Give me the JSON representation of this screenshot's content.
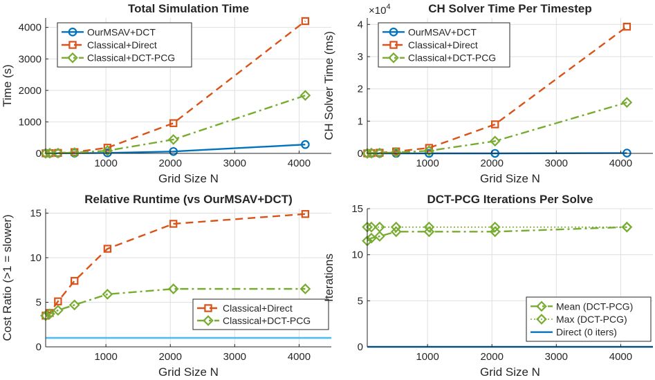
{
  "colors": {
    "blue": "#0072BD",
    "orange": "#D95319",
    "green": "#77AC30",
    "lightblue": "#4DBEEE",
    "axis": "#262626",
    "grid": "#dfdfdf"
  },
  "chart_data": [
    {
      "type": "line",
      "title": "Total Simulation Time",
      "xlabel": "Grid Size N",
      "ylabel": "Time (s)",
      "xlim": [
        64,
        4500
      ],
      "ylim": [
        0,
        4300
      ],
      "xticks": [
        1000,
        2000,
        3000,
        4000
      ],
      "yticks": [
        0,
        1000,
        2000,
        3000,
        4000
      ],
      "exponent_label": "",
      "legend_position": "top-left",
      "series": [
        {
          "name": "OurMSAV+DCT",
          "x": [
            64,
            128,
            256,
            512,
            1024,
            2048,
            4096
          ],
          "values": [
            1,
            2,
            4,
            6,
            15,
            60,
            280
          ],
          "color": "#0072BD",
          "marker": "o",
          "dash": ""
        },
        {
          "name": "Classical+Direct",
          "x": [
            64,
            128,
            256,
            512,
            1024,
            2048,
            4096
          ],
          "values": [
            3,
            8,
            15,
            40,
            180,
            960,
            4200
          ],
          "color": "#D95319",
          "marker": "s",
          "dash": "11,7"
        },
        {
          "name": "Classical+DCT-PCG",
          "x": [
            64,
            128,
            256,
            512,
            1024,
            2048,
            4096
          ],
          "values": [
            3,
            6,
            10,
            25,
            85,
            440,
            1840
          ],
          "color": "#77AC30",
          "marker": "d",
          "dash": "12,5,3,5"
        }
      ]
    },
    {
      "type": "line",
      "title": "CH Solver Time Per Timestep",
      "xlabel": "Grid Size N",
      "ylabel": "CH Solver Time (ms)",
      "xlim": [
        64,
        4500
      ],
      "ylim": [
        0,
        4.2
      ],
      "xticks": [
        1000,
        2000,
        3000,
        4000
      ],
      "yticks": [
        0,
        1,
        2,
        3,
        4
      ],
      "exponent_label": "×10",
      "exponent_power": "4",
      "legend_position": "top-left",
      "series": [
        {
          "name": "OurMSAV+DCT",
          "x": [
            64,
            128,
            256,
            512,
            1024,
            2048,
            4096
          ],
          "values": [
            0.0,
            0.0,
            0.0,
            0.0,
            0.0,
            0.0,
            0.01
          ],
          "color": "#0072BD",
          "marker": "o",
          "dash": ""
        },
        {
          "name": "Classical+Direct",
          "x": [
            64,
            128,
            256,
            512,
            1024,
            2048,
            4096
          ],
          "values": [
            0.0,
            0.01,
            0.02,
            0.06,
            0.17,
            0.9,
            3.93
          ],
          "color": "#D95319",
          "marker": "s",
          "dash": "11,7"
        },
        {
          "name": "Classical+DCT-PCG",
          "x": [
            64,
            128,
            256,
            512,
            1024,
            2048,
            4096
          ],
          "values": [
            0.0,
            0.01,
            0.01,
            0.03,
            0.08,
            0.38,
            1.58
          ],
          "color": "#77AC30",
          "marker": "d",
          "dash": "12,5,3,5"
        }
      ]
    },
    {
      "type": "line",
      "title": "Relative Runtime (vs OurMSAV+DCT)",
      "xlabel": "Grid Size N",
      "ylabel": "Cost Ratio (>1 = slower)",
      "xlim": [
        64,
        4500
      ],
      "ylim": [
        0,
        15.5
      ],
      "xticks": [
        1000,
        2000,
        3000,
        4000
      ],
      "yticks": [
        0,
        5,
        10,
        15
      ],
      "exponent_label": "",
      "legend_position": "bottom-right",
      "reference_line": {
        "y": 1,
        "color": "#4DBEEE"
      },
      "series": [
        {
          "name": "Classical+Direct",
          "x": [
            64,
            128,
            256,
            512,
            1024,
            2048,
            4096
          ],
          "values": [
            3.5,
            3.8,
            5.1,
            7.4,
            11.0,
            13.8,
            14.9
          ],
          "color": "#D95319",
          "marker": "s",
          "dash": "11,7"
        },
        {
          "name": "Classical+DCT-PCG",
          "x": [
            64,
            128,
            256,
            512,
            1024,
            2048,
            4096
          ],
          "values": [
            3.5,
            3.7,
            4.1,
            4.7,
            5.9,
            6.5,
            6.5
          ],
          "color": "#77AC30",
          "marker": "d",
          "dash": "12,5,3,5"
        }
      ]
    },
    {
      "type": "line",
      "title": "DCT-PCG Iterations Per Solve",
      "xlabel": "Grid Size N",
      "ylabel": "Iterations",
      "xlim": [
        64,
        4500
      ],
      "ylim": [
        0,
        15
      ],
      "xticks": [
        1000,
        2000,
        3000,
        4000
      ],
      "yticks": [
        0,
        5,
        10,
        15
      ],
      "exponent_label": "",
      "legend_position": "bottom-right",
      "series": [
        {
          "name": "Mean (DCT-PCG)",
          "x": [
            64,
            128,
            256,
            512,
            1024,
            2048,
            4096
          ],
          "values": [
            11.5,
            11.8,
            12.0,
            12.5,
            12.5,
            12.5,
            13.0
          ],
          "color": "#77AC30",
          "marker": "d",
          "dash": "12,5,3,5"
        },
        {
          "name": "Max (DCT-PCG)",
          "x": [
            64,
            128,
            256,
            512,
            1024,
            2048,
            4096
          ],
          "values": [
            13,
            13,
            13,
            13,
            13,
            13,
            13
          ],
          "color": "#77AC30",
          "marker": "d",
          "dash": "2,3",
          "thin": true
        },
        {
          "name": "Direct (0 iters)",
          "x": [
            64,
            4500
          ],
          "values": [
            0,
            0
          ],
          "color": "#0072BD",
          "marker": "",
          "dash": ""
        }
      ]
    }
  ]
}
